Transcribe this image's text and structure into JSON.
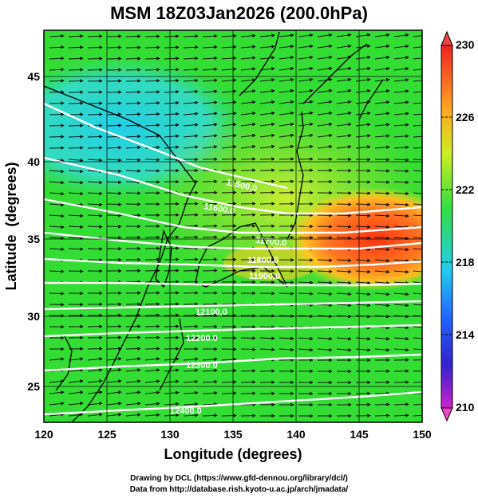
{
  "title": "MSM 18Z03Jan2026 (200.0hPa)",
  "xlabel": "Longitude (degrees)",
  "ylabel": "Latitude  (degrees)",
  "xticks": [
    "120",
    "125",
    "130",
    "135",
    "140",
    "145",
    "150"
  ],
  "yticks": [
    "25",
    "30",
    "35",
    "40",
    "45"
  ],
  "colorbar": {
    "min": 210,
    "max": 230,
    "labels": [
      "230",
      "226",
      "222",
      "218",
      "214",
      "210"
    ]
  },
  "contours": [
    {
      "label": "11500.0"
    },
    {
      "label": "11600.0"
    },
    {
      "label": "11700.0"
    },
    {
      "label": "11800.0"
    },
    {
      "label": "11900.0"
    },
    {
      "label": "12100.0"
    },
    {
      "label": "12200.0"
    },
    {
      "label": "12300.0"
    },
    {
      "label": "12400.0"
    }
  ],
  "footer": {
    "line1": "Drawing by DCL (https://www.gfd-dennou.org/library/dcl/)",
    "line2": "Data from http://database.rish.kyoto-u.ac.jp/arch/jmadata/"
  },
  "colors": {
    "field_base": "#33dd33",
    "cold": "#22ccee",
    "warm": "#ff4422",
    "contour": "#ffffff",
    "arrow": "#111111"
  }
}
